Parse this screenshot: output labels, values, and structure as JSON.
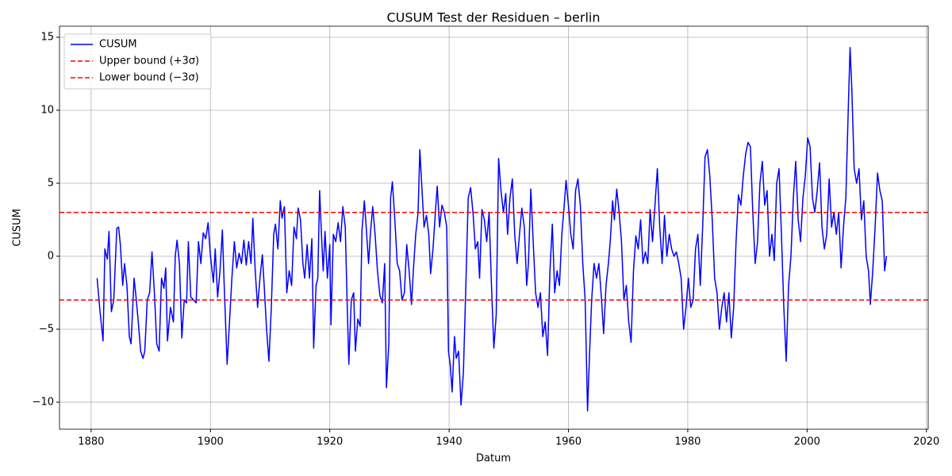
{
  "chart_data": {
    "type": "line",
    "title": "CUSUM Test der Residuen – berlin",
    "xlabel": "Datum",
    "ylabel": "CUSUM",
    "xlim": [
      1874.7,
      2020.3
    ],
    "ylim": [
      -11.85,
      15.76
    ],
    "xticks": [
      1880,
      1900,
      1920,
      1940,
      1960,
      1980,
      2000,
      2020
    ],
    "yticks": [
      {
        "value": -10,
        "label": "−10"
      },
      {
        "value": -5,
        "label": "−5"
      },
      0,
      5,
      10,
      15
    ],
    "grid": true,
    "legend": "upper left",
    "series": [
      {
        "name": "CUSUM",
        "color": "#0000ff",
        "x": [
          1881.0,
          1881.5,
          1882.0,
          1882.3,
          1882.7,
          1883.0,
          1883.4,
          1883.8,
          1884.3,
          1884.6,
          1884.9,
          1885.3,
          1885.6,
          1886.0,
          1886.4,
          1886.7,
          1887.2,
          1887.5,
          1887.9,
          1888.3,
          1888.7,
          1889.0,
          1889.4,
          1889.8,
          1890.2,
          1890.6,
          1891.0,
          1891.4,
          1891.8,
          1892.2,
          1892.5,
          1892.8,
          1893.3,
          1893.8,
          1894.1,
          1894.4,
          1894.8,
          1895.2,
          1895.6,
          1896.0,
          1896.3,
          1896.7,
          1897.2,
          1897.6,
          1898.0,
          1898.4,
          1898.8,
          1899.2,
          1899.6,
          1900.0,
          1900.5,
          1900.8,
          1901.2,
          1901.6,
          1902.0,
          1902.3,
          1902.8,
          1903.2,
          1903.6,
          1904.0,
          1904.4,
          1904.8,
          1905.2,
          1905.6,
          1906.0,
          1906.4,
          1906.8,
          1907.1,
          1907.5,
          1907.9,
          1908.3,
          1908.7,
          1909.0,
          1909.4,
          1909.8,
          1910.2,
          1910.6,
          1910.9,
          1911.3,
          1911.7,
          1912.0,
          1912.4,
          1912.8,
          1913.2,
          1913.6,
          1914.0,
          1914.4,
          1914.7,
          1915.1,
          1915.5,
          1915.8,
          1916.2,
          1916.6,
          1917.0,
          1917.3,
          1917.7,
          1918.0,
          1918.3,
          1918.6,
          1918.9,
          1919.2,
          1919.6,
          1920.0,
          1920.2,
          1920.6,
          1921.0,
          1921.4,
          1921.8,
          1922.2,
          1922.6,
          1922.9,
          1923.2,
          1923.6,
          1924.0,
          1924.3,
          1924.7,
          1925.1,
          1925.4,
          1925.8,
          1926.1,
          1926.5,
          1926.8,
          1927.2,
          1927.6,
          1928.0,
          1928.4,
          1928.8,
          1929.2,
          1929.5,
          1929.9,
          1930.2,
          1930.5,
          1930.9,
          1931.3,
          1931.7,
          1932.1,
          1932.5,
          1932.9,
          1933.3,
          1933.7,
          1934.0,
          1934.4,
          1934.8,
          1935.1,
          1935.4,
          1935.8,
          1936.2,
          1936.6,
          1936.9,
          1937.3,
          1937.7,
          1938.0,
          1938.4,
          1938.8,
          1939.2,
          1939.6,
          1939.9,
          1940.2,
          1940.5,
          1940.9,
          1941.2,
          1941.6,
          1942.0,
          1942.4,
          1942.8,
          1943.2,
          1943.6,
          1944.0,
          1944.4,
          1944.8,
          1945.1,
          1945.5,
          1945.9,
          1946.3,
          1946.7,
          1947.1,
          1947.5,
          1947.9,
          1948.3,
          1948.7,
          1949.1,
          1949.5,
          1949.8,
          1950.2,
          1950.6,
          1951.0,
          1951.4,
          1951.8,
          1952.2,
          1952.6,
          1953.0,
          1953.3,
          1953.7,
          1954.1,
          1954.5,
          1954.9,
          1955.3,
          1955.7,
          1956.1,
          1956.5,
          1956.9,
          1957.3,
          1957.7,
          1958.1,
          1958.5,
          1958.9,
          1959.3,
          1959.6,
          1960.0,
          1960.4,
          1960.8,
          1961.2,
          1961.6,
          1962.0,
          1962.4,
          1962.8,
          1963.2,
          1963.6,
          1963.9,
          1964.3,
          1964.7,
          1965.1,
          1965.5,
          1965.9,
          1966.3,
          1966.7,
          1967.0,
          1967.4,
          1967.7,
          1968.1,
          1968.5,
          1968.9,
          1969.3,
          1969.7,
          1970.1,
          1970.5,
          1970.9,
          1971.3,
          1971.7,
          1972.1,
          1972.5,
          1972.9,
          1973.3,
          1973.7,
          1974.1,
          1974.5,
          1974.9,
          1975.3,
          1975.7,
          1976.1,
          1976.5,
          1976.9,
          1977.3,
          1977.7,
          1978.1,
          1978.5,
          1978.9,
          1979.3,
          1979.7,
          1980.1,
          1980.5,
          1980.9,
          1981.3,
          1981.7,
          1982.1,
          1982.5,
          1982.9,
          1983.3,
          1983.7,
          1984.1,
          1984.5,
          1984.9,
          1985.3,
          1985.7,
          1986.1,
          1986.5,
          1986.9,
          1987.3,
          1987.7,
          1988.1,
          1988.5,
          1988.9,
          1989.3,
          1989.7,
          1990.1,
          1990.5,
          1990.9,
          1991.3,
          1991.7,
          1992.1,
          1992.5,
          1992.9,
          1993.3,
          1993.7,
          1994.1,
          1994.5,
          1994.9,
          1995.3,
          1995.7,
          1996.1,
          1996.5,
          1996.9,
          1997.3,
          1997.7,
          1998.1,
          1998.5,
          1998.9,
          1999.3,
          1999.7,
          2000.1,
          2000.5,
          2000.9,
          2001.3,
          2001.7,
          2002.1,
          2002.5,
          2002.9,
          2003.3,
          2003.7,
          2004.1,
          2004.5,
          2004.9,
          2005.3,
          2005.7,
          2006.1,
          2006.5,
          2006.9,
          2007.2,
          2007.5,
          2007.9,
          2008.3,
          2008.7,
          2009.1,
          2009.5,
          2009.9,
          2010.3,
          2010.6,
          2011.0,
          2011.4,
          2011.8,
          2012.2,
          2012.6,
          2013.0,
          2013.3
        ],
        "values": [
          -1.5,
          -3.8,
          -5.8,
          0.5,
          -0.2,
          1.7,
          -3.8,
          -3,
          1.9,
          2.0,
          0.8,
          -2,
          -0.5,
          -2,
          -5.5,
          -6,
          -1.5,
          -2.7,
          -4.5,
          -6.5,
          -7,
          -6.5,
          -3,
          -2.5,
          0.3,
          -2.5,
          -6,
          -6.5,
          -1.5,
          -2.2,
          -0.8,
          -5.8,
          -3.5,
          -4.5,
          0,
          1.1,
          -0.5,
          -5.6,
          -3,
          -3.2,
          1.0,
          -2.8,
          -3.0,
          -3.2,
          1.0,
          -0.5,
          1.6,
          1.2,
          2.3,
          0,
          -1.8,
          0.5,
          -2.8,
          -1,
          1.8,
          -2,
          -7.4,
          -4.5,
          -1.5,
          1.0,
          -0.8,
          0.2,
          -0.5,
          1.1,
          -0.6,
          1.0,
          -0.5,
          2.6,
          -1.0,
          -3.5,
          -1.5,
          0.1,
          -2,
          -5.0,
          -7.2,
          -3.5,
          1.5,
          2.2,
          0.5,
          3.8,
          2.6,
          3.4,
          -2.5,
          -1.0,
          -2.0,
          2.0,
          1.2,
          3.3,
          2.5,
          -0.5,
          -1.5,
          0.8,
          -1.5,
          1.2,
          -6.3,
          -2,
          -1.5,
          4.5,
          1.5,
          -1,
          1.7,
          -1.5,
          0.8,
          -4.7,
          1.5,
          1.0,
          2.3,
          1.0,
          3.4,
          2.0,
          -3.0,
          -7.4,
          -3,
          -2.5,
          -6.5,
          -4.3,
          -4.8,
          1.8,
          3.8,
          2.0,
          -0.5,
          1.5,
          3.4,
          1.5,
          -1.0,
          -2.7,
          -3.2,
          -0.5,
          -9.0,
          -6.0,
          4.0,
          5.1,
          2.5,
          -0.5,
          -1.0,
          -3.0,
          -2.5,
          0.8,
          -1,
          -3.3,
          -1.0,
          1.5,
          3.0,
          7.3,
          5.0,
          2.0,
          2.8,
          1.5,
          -1.2,
          0.5,
          3.0,
          4.8,
          2.0,
          3.5,
          3.0,
          2.0,
          -6.5,
          -7.5,
          -9.3,
          -5.5,
          -7,
          -6.5,
          -10.2,
          -8.0,
          -2,
          4.0,
          4.7,
          3.0,
          0.5,
          1.0,
          -1.5,
          3.2,
          2.5,
          1,
          3.0,
          -2.0,
          -6.3,
          -4.0,
          6.7,
          4.5,
          3.0,
          4.3,
          1.5,
          4.0,
          5.3,
          1.5,
          -0.5,
          1.5,
          3.3,
          2.0,
          -2.0,
          -0.5,
          4.6,
          1.0,
          -2.5,
          -3.5,
          -2.5,
          -5.5,
          -4.5,
          -6.8,
          -1,
          2.2,
          -2.5,
          -1.0,
          -2.0,
          1.5,
          3.5,
          5.2,
          3.5,
          1.5,
          0.5,
          4.5,
          5.3,
          3.5,
          -0.5,
          -3.0,
          -10.6,
          -6,
          -3,
          -0.5,
          -1.5,
          -0.5,
          -2.7,
          -5.3,
          -2.0,
          -0.5,
          1.0,
          3.8,
          2.5,
          4.6,
          3.0,
          1.0,
          -3.0,
          -2,
          -4.5,
          -5.9,
          -1.0,
          1.4,
          0.5,
          2.5,
          -0.5,
          0.3,
          -0.5,
          3.2,
          1.0,
          3.5,
          6.0,
          2.0,
          -0.5,
          2.8,
          0.0,
          1.5,
          0.5,
          0.0,
          0.3,
          -0.5,
          -1.5,
          -5.0,
          -3.5,
          -1.5,
          -3.5,
          -3.0,
          0.5,
          1.5,
          -2.0,
          2.0,
          6.8,
          7.3,
          5.5,
          2.5,
          -1.5,
          -2.5,
          -5.0,
          -3.5,
          -2.5,
          -4.5,
          -2.5,
          -5.6,
          -3.5,
          1.0,
          4.2,
          3.5,
          5.5,
          7.0,
          7.8,
          7.5,
          3.0,
          -0.5,
          1.0,
          5.0,
          6.5,
          3.5,
          4.5,
          0.0,
          1.5,
          -0.3,
          5.0,
          6.0,
          1.5,
          -3.5,
          -7.2,
          -2.0,
          0.0,
          4.0,
          6.5,
          2.5,
          1.0,
          4.0,
          5.5,
          8.1,
          7.5,
          4.0,
          3.0,
          4.5,
          6.4,
          2.0,
          0.5,
          1.5,
          5.3,
          2.0,
          3.0,
          1.5,
          3.0,
          -0.8,
          2.0,
          4.0,
          10.0,
          14.3,
          11.5,
          6.0,
          5.0,
          6.0,
          2.5,
          3.8,
          0.0,
          -1.0,
          -3.3,
          -1,
          2.0,
          5.7,
          4.5,
          3.8,
          -1.0,
          0.0
        ]
      }
    ],
    "hlines": [
      {
        "name": "Upper bound (+3σ)",
        "value": 3,
        "color": "#ff0000"
      },
      {
        "name": "Lower bound (−3σ)",
        "value": -3,
        "color": "#ff0000"
      }
    ]
  }
}
